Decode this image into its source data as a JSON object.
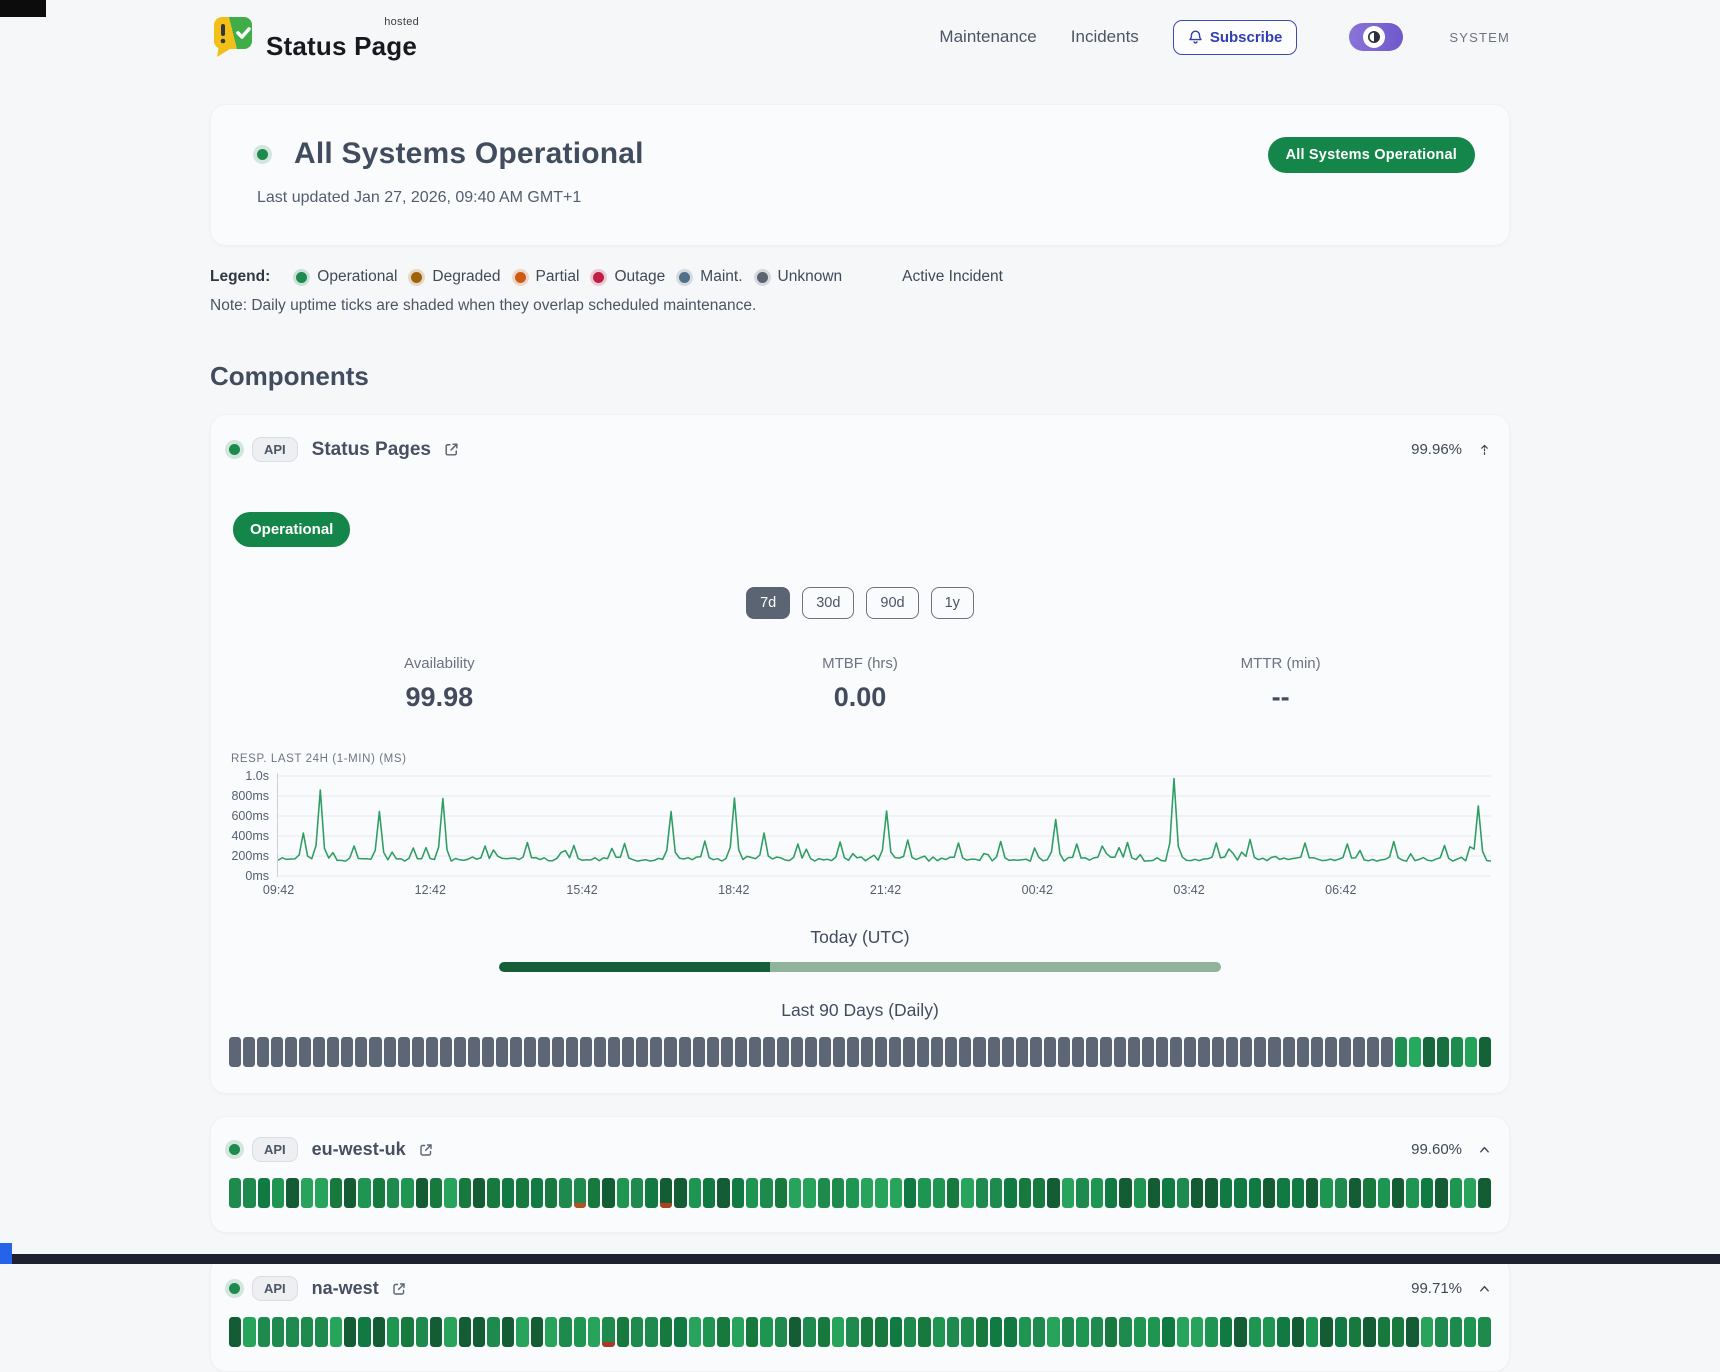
{
  "brand": {
    "name": "Status Page",
    "superscript": "hosted"
  },
  "nav": {
    "maintenance": "Maintenance",
    "incidents": "Incidents",
    "subscribe": "Subscribe",
    "system_label": "SYSTEM"
  },
  "hero": {
    "title": "All Systems Operational",
    "last_updated": "Last updated Jan 27, 2026, 09:40 AM GMT+1",
    "badge": "All Systems Operational",
    "status_color": "#1d8a4e"
  },
  "legend": {
    "label": "Legend:",
    "items": [
      {
        "key": "operational",
        "label": "Operational",
        "color": "#1d8a4e"
      },
      {
        "key": "degraded",
        "label": "Degraded",
        "color": "#a16207"
      },
      {
        "key": "partial",
        "label": "Partial",
        "color": "#cf5a12"
      },
      {
        "key": "outage",
        "label": "Outage",
        "color": "#c21d45"
      },
      {
        "key": "maint",
        "label": "Maint.",
        "color": "#4f7086"
      },
      {
        "key": "unknown",
        "label": "Unknown",
        "color": "#5b6470"
      }
    ],
    "active_incident": "Active Incident",
    "note": "Note: Daily uptime ticks are shaded when they overlap scheduled maintenance."
  },
  "components": {
    "heading": "Components",
    "main": {
      "api_badge": "API",
      "name": "Status Pages",
      "uptime": "99.96%",
      "status_badge": "Operational",
      "ranges": [
        "7d",
        "30d",
        "90d",
        "1y"
      ],
      "active_range": "7d",
      "stats": [
        {
          "label": "Availability",
          "value": "99.98"
        },
        {
          "label": "MTBF (hrs)",
          "value": "0.00"
        },
        {
          "label": "MTTR (min)",
          "value": "--"
        }
      ],
      "chart": {
        "title": "RESP. LAST 24H (1-MIN) (MS)",
        "y_ticks": [
          "1.0s",
          "800ms",
          "600ms",
          "400ms",
          "200ms",
          "0ms"
        ],
        "x_ticks": [
          "09:42",
          "12:42",
          "15:42",
          "18:42",
          "21:42",
          "00:42",
          "03:42",
          "06:42"
        ],
        "y_max_ms": 1000,
        "baseline_ms": 148,
        "noise_ms": 42,
        "seed": 1337,
        "line_color": "#2e9d62",
        "spikes": [
          [
            0.022,
            430
          ],
          [
            0.034,
            860
          ],
          [
            0.062,
            300
          ],
          [
            0.085,
            645
          ],
          [
            0.11,
            280
          ],
          [
            0.135,
            775
          ],
          [
            0.17,
            300
          ],
          [
            0.205,
            335
          ],
          [
            0.245,
            305
          ],
          [
            0.285,
            325
          ],
          [
            0.325,
            645
          ],
          [
            0.352,
            350
          ],
          [
            0.378,
            780
          ],
          [
            0.4,
            430
          ],
          [
            0.43,
            320
          ],
          [
            0.465,
            340
          ],
          [
            0.5,
            650
          ],
          [
            0.52,
            360
          ],
          [
            0.56,
            330
          ],
          [
            0.597,
            345
          ],
          [
            0.64,
            565
          ],
          [
            0.66,
            320
          ],
          [
            0.7,
            335
          ],
          [
            0.737,
            975
          ],
          [
            0.775,
            330
          ],
          [
            0.8,
            365
          ],
          [
            0.845,
            330
          ],
          [
            0.88,
            320
          ],
          [
            0.92,
            345
          ],
          [
            0.96,
            305
          ],
          [
            0.99,
            700
          ]
        ]
      },
      "today": {
        "label": "Today (UTC)",
        "fraction": 0.376,
        "fill": "#155e37",
        "track": "#8fb49a"
      },
      "history": {
        "label": "Last 90 Days (Daily)",
        "count": 90,
        "gray_count": 83,
        "gray_color": "#5d6674",
        "green_colors": [
          "#1d9150",
          "#25a95e",
          "#17693d",
          "#186f40",
          "#1d8a4e",
          "#23a35a",
          "#136336"
        ]
      }
    },
    "subcomponents": [
      {
        "api_badge": "API",
        "name": "eu-west-uk",
        "uptime": "99.60%",
        "ticks": 88,
        "seed": 7,
        "palette": [
          "#1f8a4d",
          "#18793f",
          "#27a35b",
          "#145c33",
          "#1f9552",
          "#117a43"
        ],
        "specials": [
          {
            "index": 24,
            "color": "#b4531f"
          },
          {
            "index": 30,
            "color": "#a8431c"
          }
        ]
      },
      {
        "api_badge": "API",
        "name": "na-west",
        "uptime": "99.71%",
        "ticks": 88,
        "seed": 13,
        "palette": [
          "#1f8a4d",
          "#18793f",
          "#27a35b",
          "#145c33",
          "#1f9552",
          "#117a43"
        ],
        "specials": [
          {
            "index": 26,
            "color": "#a83a2a"
          }
        ]
      }
    ]
  }
}
